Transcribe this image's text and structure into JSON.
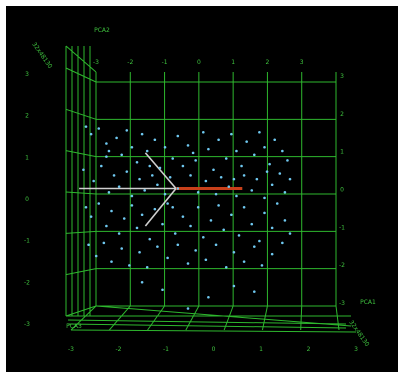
{
  "chart_data": {
    "type": "scatter",
    "title": "",
    "axes": {
      "front_x": {
        "label": "PCA1",
        "ticks": [
          "-3",
          "-2",
          "-1",
          "0",
          "1",
          "2",
          "3"
        ]
      },
      "front_y_left": {
        "ticks": [
          "3",
          "2",
          "1",
          "0",
          "-1",
          "-2",
          "-3"
        ]
      },
      "front_y_right": {
        "ticks": [
          "3",
          "2",
          "1",
          "0",
          "-1",
          "-2",
          "-3"
        ]
      },
      "back_x_top": {
        "label": "PCA2",
        "ticks": [
          "-3",
          "-2",
          "-1",
          "0",
          "1",
          "2",
          "3"
        ]
      },
      "depth_top_left_label": "32x48130",
      "depth_bottom_left_label": "PCA3",
      "depth_bottom_right_label": "32x48130"
    },
    "xlim": [
      -3,
      3
    ],
    "ylim": [
      -3,
      3
    ],
    "grid": true,
    "colors": {
      "background": "#000000",
      "grid": "#2eb82e",
      "points": "#6fc8f0",
      "axis_label": "#3fc43f",
      "vector_white": "#cfcfcf",
      "vector_red": "#c8401a",
      "vector_green": "#2ea02e"
    },
    "vectors": [
      {
        "x": -0.6,
        "y": 0.95
      },
      {
        "x": -0.6,
        "y": -1.0
      },
      {
        "x": 0.7,
        "y": 0.0
      },
      {
        "x": 1.3,
        "y": 0.0
      },
      {
        "x": -1.9,
        "y": 0.0
      }
    ],
    "points": [
      [
        -2.0,
        1.65
      ],
      [
        -1.9,
        1.45
      ],
      [
        -1.75,
        1.6
      ],
      [
        -1.6,
        1.2
      ],
      [
        -1.55,
        1.0
      ],
      [
        -1.4,
        1.35
      ],
      [
        -1.3,
        0.9
      ],
      [
        -1.2,
        1.55
      ],
      [
        -1.1,
        1.1
      ],
      [
        -1.0,
        0.7
      ],
      [
        -0.9,
        1.45
      ],
      [
        -0.8,
        1.0
      ],
      [
        -0.65,
        1.3
      ],
      [
        -0.55,
        0.55
      ],
      [
        -0.45,
        1.1
      ],
      [
        -0.3,
        0.8
      ],
      [
        -0.2,
        1.4
      ],
      [
        -0.1,
        0.6
      ],
      [
        0.0,
        1.15
      ],
      [
        0.15,
        0.75
      ],
      [
        0.3,
        1.5
      ],
      [
        0.4,
        1.05
      ],
      [
        0.5,
        0.5
      ],
      [
        0.6,
        1.3
      ],
      [
        0.75,
        0.8
      ],
      [
        0.85,
        1.45
      ],
      [
        0.95,
        1.0
      ],
      [
        1.05,
        0.6
      ],
      [
        1.15,
        1.25
      ],
      [
        1.3,
        0.9
      ],
      [
        1.4,
        1.5
      ],
      [
        1.5,
        1.1
      ],
      [
        1.6,
        0.65
      ],
      [
        1.7,
        1.3
      ],
      [
        1.85,
        1.0
      ],
      [
        1.95,
        0.75
      ],
      [
        -2.05,
        0.5
      ],
      [
        -1.85,
        0.2
      ],
      [
        -1.7,
        0.6
      ],
      [
        -1.55,
        -0.1
      ],
      [
        -1.45,
        0.35
      ],
      [
        -1.35,
        0.05
      ],
      [
        -1.2,
        0.45
      ],
      [
        -1.1,
        -0.2
      ],
      [
        -0.95,
        0.25
      ],
      [
        -0.85,
        -0.05
      ],
      [
        -0.7,
        0.35
      ],
      [
        -0.6,
        0.1
      ],
      [
        -0.45,
        -0.15
      ],
      [
        -0.35,
        0.3
      ],
      [
        -0.2,
        0.0
      ],
      [
        0.05,
        0.35
      ],
      [
        0.2,
        -0.1
      ],
      [
        0.35,
        0.2
      ],
      [
        0.55,
        -0.15
      ],
      [
        0.65,
        0.3
      ],
      [
        0.8,
        0.05
      ],
      [
        0.95,
        -0.2
      ],
      [
        1.1,
        0.35
      ],
      [
        1.25,
        -0.05
      ],
      [
        1.35,
        0.25
      ],
      [
        1.5,
        -0.25
      ],
      [
        1.65,
        0.1
      ],
      [
        1.8,
        0.4
      ],
      [
        1.9,
        -0.1
      ],
      [
        2.0,
        0.25
      ],
      [
        -2.0,
        -0.5
      ],
      [
        -1.9,
        -0.75
      ],
      [
        -1.75,
        -0.4
      ],
      [
        -1.6,
        -1.0
      ],
      [
        -1.5,
        -0.6
      ],
      [
        -1.35,
        -1.2
      ],
      [
        -1.25,
        -0.8
      ],
      [
        -1.1,
        -0.45
      ],
      [
        -1.0,
        -1.05
      ],
      [
        -0.9,
        -0.7
      ],
      [
        -0.75,
        -1.35
      ],
      [
        -0.65,
        -0.55
      ],
      [
        -0.5,
        -0.95
      ],
      [
        -0.4,
        -0.4
      ],
      [
        -0.25,
        -1.2
      ],
      [
        -0.1,
        -0.75
      ],
      [
        0.05,
        -1.0
      ],
      [
        0.2,
        -0.5
      ],
      [
        0.3,
        -1.3
      ],
      [
        0.45,
        -0.85
      ],
      [
        0.6,
        -0.45
      ],
      [
        0.7,
        -1.1
      ],
      [
        0.85,
        -0.7
      ],
      [
        1.0,
        -1.25
      ],
      [
        1.1,
        -0.5
      ],
      [
        1.25,
        -0.95
      ],
      [
        1.4,
        -1.4
      ],
      [
        1.5,
        -0.65
      ],
      [
        1.65,
        -1.05
      ],
      [
        1.75,
        -0.4
      ],
      [
        1.9,
        -0.85
      ],
      [
        2.0,
        -1.2
      ],
      [
        -1.95,
        -1.5
      ],
      [
        -1.8,
        -1.8
      ],
      [
        -1.65,
        -1.45
      ],
      [
        -1.5,
        -1.95
      ],
      [
        -1.3,
        -1.6
      ],
      [
        -1.15,
        -2.05
      ],
      [
        -0.95,
        -1.7
      ],
      [
        -0.8,
        -2.1
      ],
      [
        -0.6,
        -1.55
      ],
      [
        -0.4,
        -1.85
      ],
      [
        -0.2,
        -1.5
      ],
      [
        0.0,
        -2.0
      ],
      [
        0.15,
        -1.65
      ],
      [
        0.35,
        -1.9
      ],
      [
        0.55,
        -1.5
      ],
      [
        0.75,
        -2.1
      ],
      [
        0.9,
        -1.7
      ],
      [
        1.1,
        -1.95
      ],
      [
        1.3,
        -1.55
      ],
      [
        1.45,
        -2.05
      ],
      [
        1.65,
        -1.75
      ],
      [
        1.85,
        -1.45
      ],
      [
        -0.9,
        -2.5
      ],
      [
        -0.5,
        -2.7
      ],
      [
        0.0,
        -3.2
      ],
      [
        0.4,
        -2.9
      ],
      [
        0.9,
        -2.6
      ],
      [
        1.3,
        -2.75
      ],
      [
        -1.6,
        0.85
      ],
      [
        -0.75,
        0.6
      ],
      [
        0.1,
        0.95
      ],
      [
        0.9,
        0.25
      ],
      [
        1.55,
        0.45
      ],
      [
        -0.3,
        -0.5
      ]
    ]
  }
}
